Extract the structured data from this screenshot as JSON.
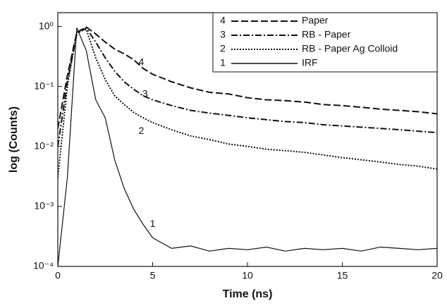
{
  "chart_data": {
    "type": "line",
    "xlabel": "Time (ns)",
    "ylabel": "log (Counts)",
    "x": [
      0,
      0.5,
      1,
      1.5,
      2,
      2.5,
      3,
      3.5,
      4,
      4.5,
      5,
      6,
      7,
      8,
      9,
      10,
      11,
      12,
      13,
      14,
      15,
      16,
      17,
      18,
      19,
      20
    ],
    "series": [
      {
        "number": "4",
        "name": "Paper",
        "color": "#111111",
        "dash": "dashed",
        "values": [
          0.02,
          0.15,
          0.8,
          0.98,
          0.75,
          0.55,
          0.42,
          0.35,
          0.28,
          0.2,
          0.16,
          0.12,
          0.095,
          0.08,
          0.075,
          0.065,
          0.06,
          0.058,
          0.055,
          0.05,
          0.048,
          0.045,
          0.042,
          0.04,
          0.038,
          0.035
        ]
      },
      {
        "number": "3",
        "name": "RB - Paper",
        "color": "#111111",
        "dash": "dashdot",
        "values": [
          0.01,
          0.12,
          0.75,
          0.95,
          0.55,
          0.3,
          0.18,
          0.12,
          0.09,
          0.07,
          0.06,
          0.048,
          0.04,
          0.036,
          0.033,
          0.03,
          0.028,
          0.026,
          0.025,
          0.023,
          0.022,
          0.021,
          0.02,
          0.019,
          0.018,
          0.017
        ]
      },
      {
        "number": "2",
        "name": "RB - Paper Ag Colloid",
        "color": "#111111",
        "dash": "dotted",
        "values": [
          0.003,
          0.1,
          0.8,
          0.9,
          0.3,
          0.13,
          0.07,
          0.05,
          0.037,
          0.03,
          0.025,
          0.019,
          0.015,
          0.013,
          0.011,
          0.01,
          0.009,
          0.0085,
          0.008,
          0.0072,
          0.0065,
          0.006,
          0.0055,
          0.005,
          0.0047,
          0.0042
        ]
      },
      {
        "number": "1",
        "name": "IRF",
        "color": "#111111",
        "dash": "solid",
        "values": [
          0.0001,
          0.003,
          0.95,
          0.4,
          0.06,
          0.03,
          0.006,
          0.002,
          0.0009,
          0.0005,
          0.0003,
          0.0002,
          0.00022,
          0.00018,
          0.0002,
          0.00019,
          0.00021,
          0.00018,
          0.0002,
          0.00019,
          0.0002,
          0.00018,
          0.00021,
          0.0002,
          0.00019,
          0.0002
        ]
      }
    ],
    "annotations": [
      {
        "text": "4",
        "x": 4.4,
        "y": 0.25
      },
      {
        "text": "3",
        "x": 4.6,
        "y": 0.074
      },
      {
        "text": "2",
        "x": 4.4,
        "y": 0.018
      },
      {
        "text": "1",
        "x": 5.0,
        "y": 0.0005
      }
    ],
    "xlim": [
      0,
      20
    ],
    "xticks": [
      0,
      5,
      10,
      15,
      20
    ],
    "ylim": [
      0.0001,
      1.7
    ],
    "yscale": "log",
    "yticks": [
      {
        "value": 0.0001,
        "label": "10⁻⁴"
      },
      {
        "value": 0.001,
        "label": "10⁻³"
      },
      {
        "value": 0.01,
        "label": "10⁻²"
      },
      {
        "value": 0.1,
        "label": "10⁻¹"
      },
      {
        "value": 1,
        "label": "10⁰"
      }
    ],
    "legend": "upper right",
    "grid": false
  }
}
